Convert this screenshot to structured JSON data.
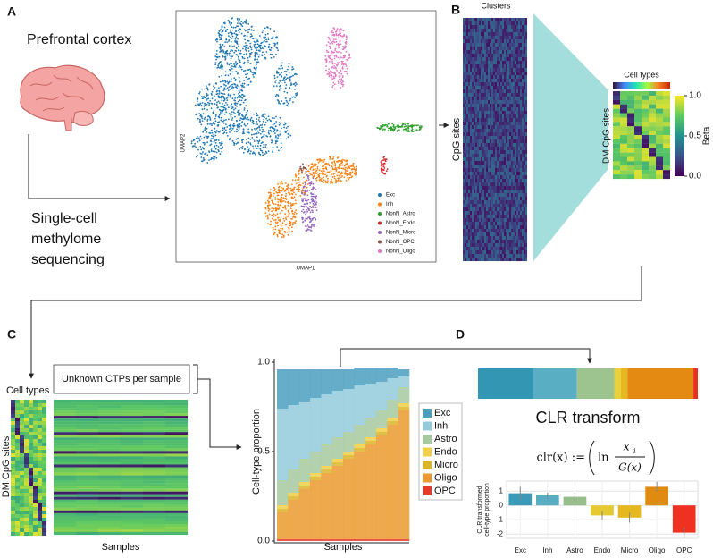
{
  "panel_labels": [
    "A",
    "B",
    "C",
    "D"
  ],
  "panel_a": {
    "title": "Prefrontal cortex",
    "method": [
      "Single-cell",
      "methylome",
      "sequencing"
    ],
    "umap": {
      "xlabel": "UMAP1",
      "ylabel": "UMAP2",
      "legend": [
        {
          "name": "Exc",
          "color": "#1f77b4"
        },
        {
          "name": "Inh",
          "color": "#ff7f0e"
        },
        {
          "name": "NonN_Astro",
          "color": "#2ca02c"
        },
        {
          "name": "NonN_Endo",
          "color": "#d62728"
        },
        {
          "name": "NonN_Micro",
          "color": "#9467bd"
        },
        {
          "name": "NonN_OPC",
          "color": "#8c564b"
        },
        {
          "name": "NonN_Oligo",
          "color": "#e377c2"
        }
      ]
    }
  },
  "panel_b": {
    "clusters_label": "Clusters",
    "rows_label": "CpG sites",
    "cell_types_label": "Cell types",
    "dm_label": "DM CpG sites",
    "colorbar": {
      "label": "Beta",
      "lim": [
        0,
        1
      ],
      "ticks": [
        {
          "value": 0,
          "label": "0.0"
        },
        {
          "value": 0.5,
          "label": "0.5"
        },
        {
          "value": 1,
          "label": "1.0"
        }
      ]
    }
  },
  "panel_c": {
    "cell_types_label": "Cell types",
    "dm_label": "DM CpG sites",
    "samples_label": "Samples",
    "box_text": "Unknown CTPs per sample"
  },
  "panel_d": {
    "transform_title": "CLR transform",
    "formula": {
      "lhs": "clr(x) :=",
      "ln": "ln",
      "numerator": "x",
      "subscript": "i",
      "denominator": "G(x)"
    }
  },
  "chart_data": [
    {
      "type": "stacked_bar",
      "ylabel": "Cell-type proportion",
      "xlabel": "Samples",
      "categories": [
        null,
        null,
        null,
        null,
        null,
        null,
        null,
        null,
        null,
        null,
        null,
        null
      ],
      "ylim": [
        0,
        1
      ],
      "yticks": [
        {
          "value": 0,
          "label": "0.0"
        },
        {
          "value": 0.5,
          "label": "0.5"
        },
        {
          "value": 1,
          "label": "1.0"
        }
      ],
      "series": [
        {
          "name": "Exc",
          "color": "#4a9fbf",
          "values": [
            0.22,
            0.2,
            0.18,
            0.16,
            0.14,
            0.12,
            0.11,
            0.1,
            0.09,
            0.08,
            0.06,
            0.04
          ]
        },
        {
          "name": "Inh",
          "color": "#93cbdc",
          "values": [
            0.4,
            0.36,
            0.32,
            0.3,
            0.28,
            0.26,
            0.24,
            0.22,
            0.19,
            0.16,
            0.12,
            0.06
          ]
        },
        {
          "name": "Astro",
          "color": "#a7c99f",
          "values": [
            0.14,
            0.13,
            0.13,
            0.12,
            0.12,
            0.12,
            0.11,
            0.11,
            0.11,
            0.1,
            0.1,
            0.09
          ]
        },
        {
          "name": "Endo",
          "color": "#efd046",
          "values": [
            0.02,
            0.02,
            0.02,
            0.02,
            0.02,
            0.02,
            0.02,
            0.02,
            0.02,
            0.02,
            0.02,
            0.02
          ]
        },
        {
          "name": "Micro",
          "color": "#dcb428",
          "values": [
            0.02,
            0.02,
            0.02,
            0.02,
            0.02,
            0.02,
            0.02,
            0.02,
            0.02,
            0.02,
            0.02,
            0.02
          ]
        },
        {
          "name": "Oligo",
          "color": "#eb9a30",
          "values": [
            0.15,
            0.22,
            0.28,
            0.33,
            0.37,
            0.41,
            0.45,
            0.49,
            0.53,
            0.58,
            0.64,
            0.72
          ]
        },
        {
          "name": "OPC",
          "color": "#e8392a",
          "values": [
            0.01,
            0.01,
            0.01,
            0.01,
            0.01,
            0.01,
            0.01,
            0.01,
            0.01,
            0.01,
            0.01,
            0.01
          ]
        }
      ]
    },
    {
      "type": "stacked_hbar",
      "xlim": [
        0,
        1
      ],
      "series": [
        {
          "color": "#3396b3",
          "values": [
            0.25
          ]
        },
        {
          "color": "#5aaec4",
          "values": [
            0.2
          ]
        },
        {
          "color": "#9dc48f",
          "values": [
            0.17
          ]
        },
        {
          "color": "#ead03a",
          "values": [
            0.03
          ]
        },
        {
          "color": "#e6b820",
          "values": [
            0.03
          ]
        },
        {
          "color": "#e48a12",
          "values": [
            0.3
          ]
        },
        {
          "color": "#e83020",
          "values": [
            0.02
          ]
        }
      ]
    },
    {
      "type": "bar",
      "ylabel": [
        "CLR transformed",
        "cell-type proportion"
      ],
      "categories": [
        "Exc",
        "Inh",
        "Astro",
        "Endo",
        "Micro",
        "Oligo",
        "OPC"
      ],
      "values": [
        0.85,
        0.7,
        0.6,
        -0.7,
        -0.85,
        1.3,
        -1.9
      ],
      "errors": [
        0.45,
        0.2,
        0.25,
        0.3,
        0.35,
        0.35,
        0.4
      ],
      "colors": [
        "#3a9ab8",
        "#5aacc4",
        "#96bd8a",
        "#e6c830",
        "#e6b820",
        "#e08a10",
        "#f03020"
      ],
      "ylim": [
        -2.3,
        1.7
      ],
      "yticks": [
        1,
        0,
        -1,
        -2
      ],
      "grid": true
    }
  ]
}
